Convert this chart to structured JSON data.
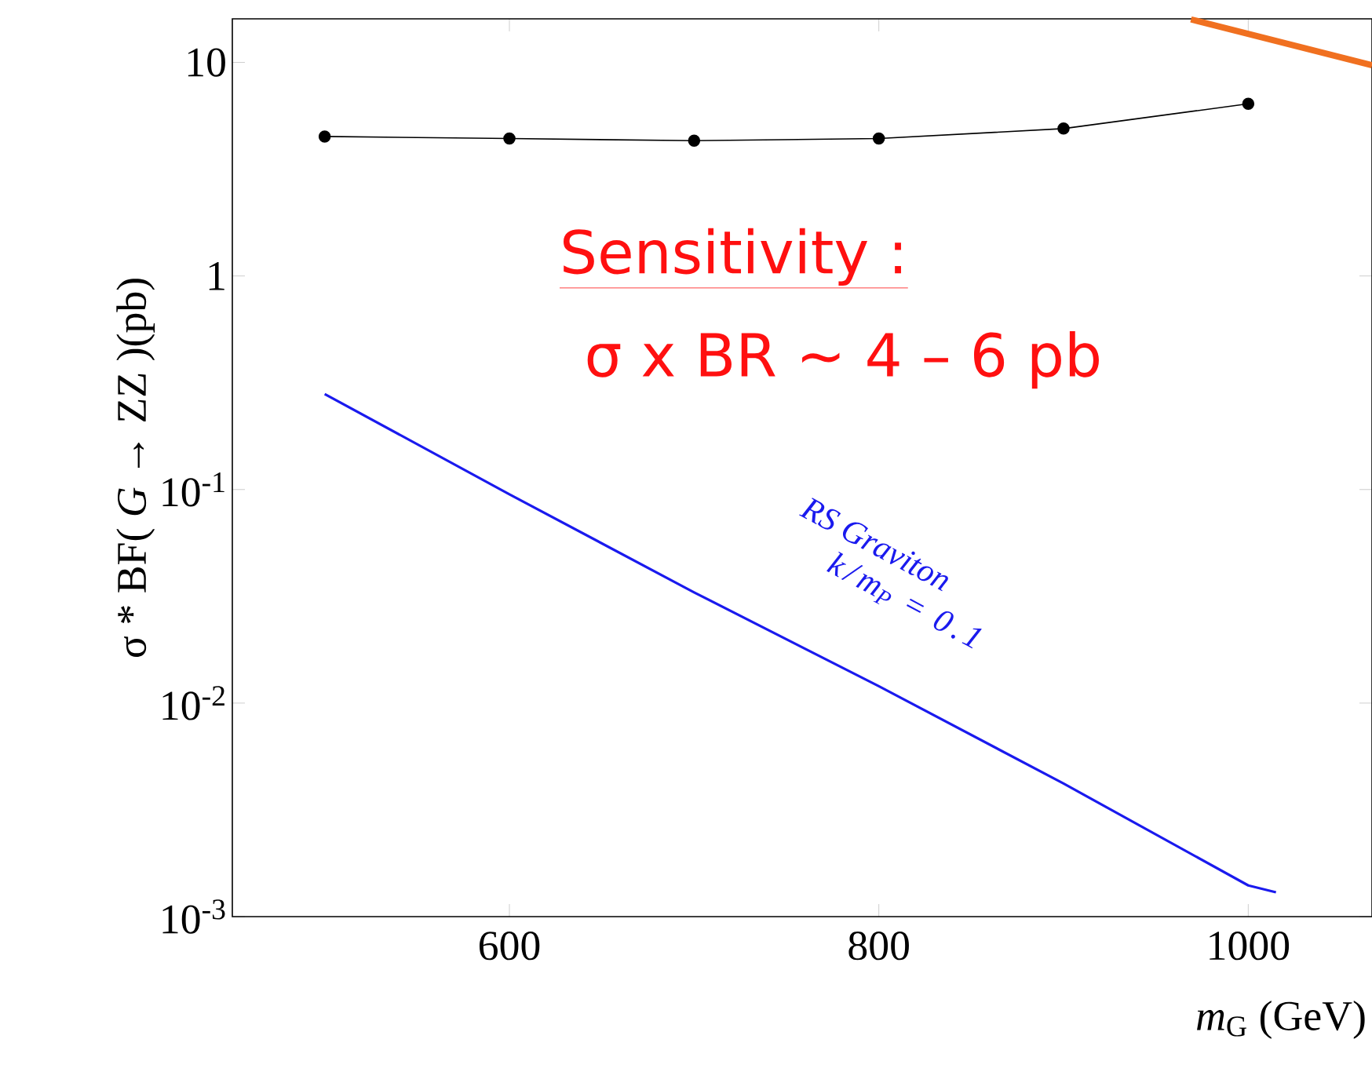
{
  "chart_data": {
    "type": "line",
    "xlabel": "*m*$_{G}$ (GeV)",
    "ylabel": "σ * BF( *G* → ZZ )(pb)",
    "log": "y",
    "xlim": [
      450,
      1067
    ],
    "ylim": [
      0.001,
      16
    ],
    "xticks": [
      600,
      800,
      1000
    ],
    "yticks": [
      {
        "value": 0.001,
        "label": "10$^{-3}$"
      },
      {
        "value": 0.01,
        "label": "10$^{-2}$"
      },
      {
        "value": 0.1,
        "label": "10$^{-1}$"
      },
      1,
      10
    ],
    "series": [
      {
        "color": "#000000",
        "marker": "circle",
        "x": [
          500,
          600,
          700,
          800,
          900,
          1000
        ],
        "values": [
          4.5,
          4.4,
          4.3,
          4.4,
          4.9,
          6.4
        ]
      },
      {
        "color": "#1a1aee",
        "marker": "none",
        "x": [
          500,
          600,
          700,
          800,
          900,
          1000,
          1015
        ],
        "values": [
          0.28,
          0.095,
          0.033,
          0.012,
          0.0042,
          0.0014,
          0.0013
        ]
      },
      {
        "color": "#f07020",
        "marker": "none",
        "x": [
          969,
          1067
        ],
        "values": [
          15.9,
          9.7
        ]
      }
    ],
    "annotations": [
      "Sensitivity :",
      "σ x BR ~ 4 – 6 pb",
      "RS Graviton",
      "k/m$_{P}$ = 0.1"
    ],
    "grid": false
  }
}
